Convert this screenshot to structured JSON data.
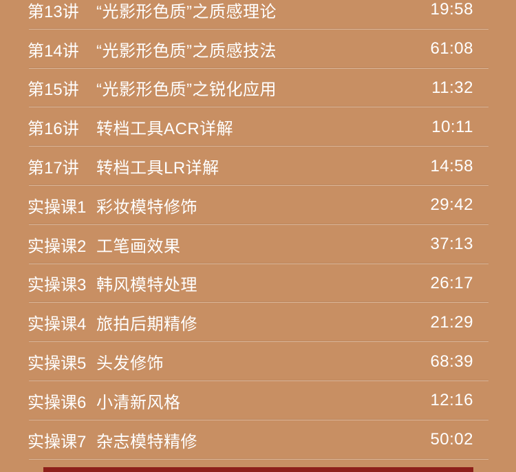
{
  "page": {
    "background_color": "#c88f63",
    "text_color": "#ffffff",
    "divider_color": "rgba(255,255,255,0.35)",
    "bottom_bar_color": "#8d1f1a"
  },
  "course_list": {
    "items": [
      {
        "label": "第13讲",
        "title": "“光影形色质”之质感理论",
        "duration": "19:58"
      },
      {
        "label": "第14讲",
        "title": "“光影形色质”之质感技法",
        "duration": "61:08"
      },
      {
        "label": "第15讲",
        "title": "“光影形色质”之锐化应用",
        "duration": "11:32"
      },
      {
        "label": "第16讲",
        "title": "转档工具ACR详解",
        "duration": "10:11"
      },
      {
        "label": "第17讲",
        "title": "转档工具LR详解",
        "duration": "14:58"
      },
      {
        "label": "实操课1",
        "title": "彩妆模特修饰",
        "duration": "29:42"
      },
      {
        "label": "实操课2",
        "title": "工笔画效果",
        "duration": "37:13"
      },
      {
        "label": "实操课3",
        "title": "韩风模特处理",
        "duration": "26:17"
      },
      {
        "label": "实操课4",
        "title": "旅拍后期精修",
        "duration": "21:29"
      },
      {
        "label": "实操课5",
        "title": "头发修饰",
        "duration": "68:39"
      },
      {
        "label": "实操课6",
        "title": "小清新风格",
        "duration": "12:16"
      },
      {
        "label": "实操课7",
        "title": "杂志模特精修",
        "duration": "50:02"
      }
    ]
  }
}
